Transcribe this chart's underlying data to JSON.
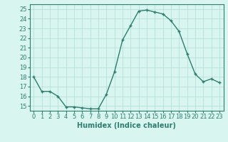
{
  "x": [
    0,
    1,
    2,
    3,
    4,
    5,
    6,
    7,
    8,
    9,
    10,
    11,
    12,
    13,
    14,
    15,
    16,
    17,
    18,
    19,
    20,
    21,
    22,
    23
  ],
  "y": [
    18.0,
    16.5,
    16.5,
    16.0,
    14.9,
    14.9,
    14.8,
    14.7,
    14.7,
    16.2,
    18.5,
    21.8,
    23.3,
    24.8,
    24.9,
    24.7,
    24.5,
    23.8,
    22.7,
    20.4,
    18.3,
    17.5,
    17.8,
    17.4
  ],
  "line_color": "#2e7d6e",
  "marker": "+",
  "marker_color": "#2e7d6e",
  "bg_color": "#d8f5f0",
  "grid_color": "#b0ddd6",
  "axis_color": "#2e7d6e",
  "xlabel": "Humidex (Indice chaleur)",
  "ylim": [
    14.5,
    25.5
  ],
  "yticks": [
    15,
    16,
    17,
    18,
    19,
    20,
    21,
    22,
    23,
    24,
    25
  ],
  "xticks": [
    0,
    1,
    2,
    3,
    4,
    5,
    6,
    7,
    8,
    9,
    10,
    11,
    12,
    13,
    14,
    15,
    16,
    17,
    18,
    19,
    20,
    21,
    22,
    23
  ],
  "xtick_labels": [
    "0",
    "1",
    "2",
    "3",
    "4",
    "5",
    "6",
    "7",
    "8",
    "9",
    "10",
    "11",
    "12",
    "13",
    "14",
    "15",
    "16",
    "17",
    "18",
    "19",
    "20",
    "21",
    "22",
    "23"
  ],
  "font_color": "#2e7d6e",
  "fontsize_ticks": 6,
  "fontsize_label": 7,
  "linewidth": 1.0,
  "markersize": 3
}
